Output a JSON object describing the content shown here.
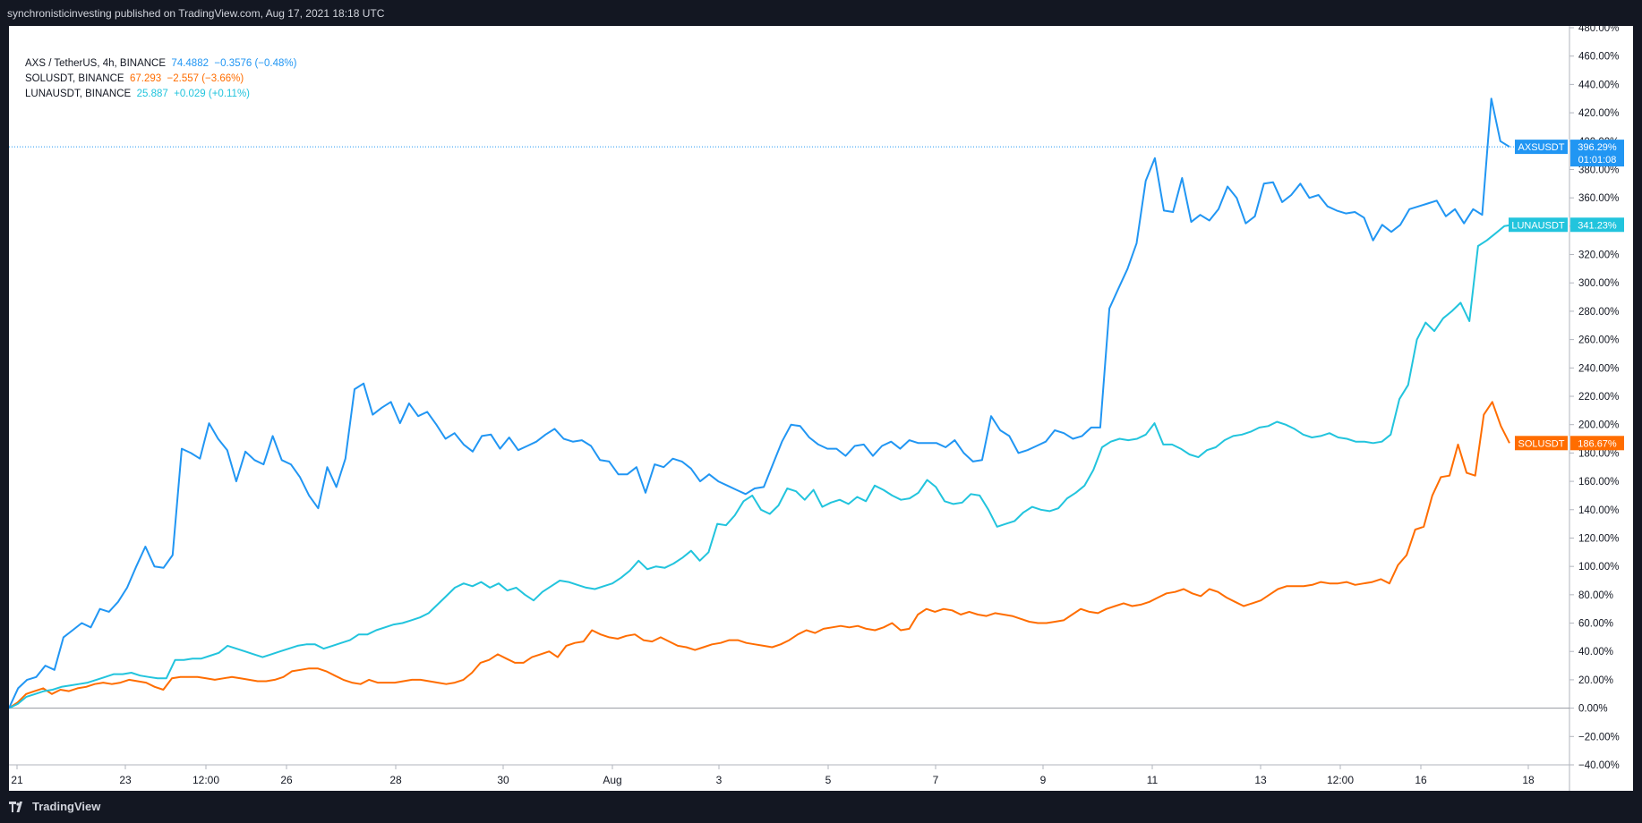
{
  "header": {
    "published": "synchronisticinvesting published on TradingView.com, Aug 17, 2021 18:18 UTC"
  },
  "legend": [
    {
      "symbol": "AXS / TetherUS, 4h, BINANCE",
      "price": "74.4882",
      "change": "−0.3576 (−0.48%)",
      "color": "#2196f3"
    },
    {
      "symbol": "SOLUSDT, BINANCE",
      "price": "67.293",
      "change": "−2.557 (−3.66%)",
      "color": "#ff6d00"
    },
    {
      "symbol": "LUNAUSDT, BINANCE",
      "price": "25.887",
      "change": "+0.029 (+0.11%)",
      "color": "#22c4dd"
    }
  ],
  "footer": {
    "brand": "TradingView"
  },
  "colors": {
    "axs": "#2196f3",
    "sol": "#ff6d00",
    "luna": "#22c4dd",
    "background": "#131722",
    "plot": "#ffffff"
  },
  "chart_data": {
    "type": "line",
    "ylim": [
      -40,
      480
    ],
    "y_ticks": [
      "480.00%",
      "460.00%",
      "440.00%",
      "420.00%",
      "400.00%",
      "380.00%",
      "360.00%",
      "340.00%",
      "320.00%",
      "300.00%",
      "280.00%",
      "260.00%",
      "240.00%",
      "220.00%",
      "200.00%",
      "180.00%",
      "160.00%",
      "140.00%",
      "120.00%",
      "100.00%",
      "80.00%",
      "60.00%",
      "40.00%",
      "20.00%",
      "0.00%",
      "−20.00%",
      "−40.00%"
    ],
    "x_ticks": [
      "21",
      "23",
      "12:00",
      "26",
      "28",
      "30",
      "Aug",
      "3",
      "5",
      "7",
      "9",
      "11",
      "13",
      "12:00",
      "16",
      "18"
    ],
    "series": [
      {
        "name": "AXSUSDT",
        "label": "396.29%",
        "countdown": "01:01:08",
        "color": "#2196f3",
        "values": [
          0,
          14,
          20,
          22,
          30,
          27,
          50,
          55,
          60,
          57,
          70,
          68,
          75,
          85,
          100,
          114,
          100,
          99,
          108,
          183,
          180,
          176,
          201,
          190,
          182,
          160,
          181,
          175,
          172,
          192,
          175,
          172,
          163,
          150,
          141,
          170,
          156,
          176,
          225,
          229,
          207,
          212,
          216,
          201,
          215,
          206,
          209,
          200,
          190,
          194,
          186,
          181,
          192,
          193,
          183,
          191,
          182,
          185,
          188,
          193,
          197,
          190,
          188,
          189,
          185,
          175,
          174,
          165,
          165,
          170,
          152,
          172,
          170,
          176,
          174,
          169,
          160,
          165,
          160,
          157,
          154,
          151,
          155,
          156,
          172,
          188,
          200,
          199,
          191,
          186,
          183,
          183,
          178,
          185,
          186,
          178,
          185,
          188,
          183,
          189,
          187,
          187,
          187,
          184,
          189,
          180,
          174,
          175,
          206,
          196,
          192,
          180,
          182,
          185,
          188,
          196,
          194,
          190,
          192,
          198,
          198,
          282,
          296,
          310,
          328,
          372,
          388,
          351,
          350,
          374,
          343,
          348,
          344,
          352,
          368,
          360,
          342,
          347,
          370,
          371,
          357,
          362,
          370,
          360,
          362,
          354,
          351,
          349,
          350,
          346,
          330,
          341,
          336,
          341,
          352,
          354,
          356,
          358,
          347,
          352,
          342,
          352,
          348,
          430,
          400,
          396
        ]
      },
      {
        "name": "LUNAUSDT",
        "label": "341.23%",
        "color": "#22c4dd",
        "values": [
          0,
          3,
          8,
          10,
          12,
          13,
          15,
          16,
          17,
          18,
          20,
          22,
          24,
          24,
          25,
          23,
          22,
          21,
          21,
          34,
          34,
          35,
          35,
          37,
          39,
          44,
          42,
          40,
          38,
          36,
          38,
          40,
          42,
          44,
          45,
          45,
          42,
          44,
          46,
          48,
          52,
          52,
          55,
          57,
          59,
          60,
          62,
          64,
          67,
          73,
          79,
          85,
          88,
          86,
          89,
          85,
          88,
          83,
          85,
          80,
          76,
          82,
          86,
          90,
          89,
          87,
          85,
          84,
          86,
          88,
          92,
          97,
          104,
          98,
          100,
          99,
          102,
          106,
          111,
          104,
          110,
          130,
          129,
          136,
          146,
          150,
          140,
          137,
          143,
          155,
          153,
          147,
          154,
          142,
          145,
          147,
          144,
          149,
          146,
          157,
          154,
          150,
          147,
          148,
          152,
          161,
          156,
          146,
          144,
          145,
          151,
          150,
          140,
          128,
          130,
          132,
          138,
          142,
          140,
          139,
          141,
          148,
          152,
          157,
          168,
          184,
          188,
          190,
          189,
          190,
          193,
          201,
          186,
          186,
          183,
          179,
          177,
          182,
          184,
          189,
          192,
          193,
          195,
          198,
          199,
          202,
          200,
          197,
          193,
          191,
          192,
          194,
          191,
          190,
          188,
          188,
          187,
          188,
          193,
          218,
          228,
          260,
          272,
          266,
          275,
          280,
          286,
          273,
          326,
          330,
          335,
          340,
          341
        ]
      },
      {
        "name": "SOLUSDT",
        "label": "186.67%",
        "color": "#ff6d00",
        "values": [
          0,
          4,
          10,
          12,
          14,
          10,
          13,
          12,
          14,
          15,
          17,
          18,
          17,
          18,
          20,
          19,
          18,
          15,
          13,
          21,
          22,
          22,
          22,
          21,
          20,
          21,
          22,
          21,
          20,
          19,
          19,
          20,
          22,
          26,
          27,
          28,
          28,
          26,
          23,
          20,
          18,
          17,
          20,
          18,
          18,
          18,
          19,
          20,
          20,
          19,
          18,
          17,
          18,
          20,
          25,
          32,
          34,
          38,
          35,
          32,
          32,
          36,
          38,
          40,
          36,
          44,
          46,
          47,
          55,
          52,
          50,
          49,
          51,
          52,
          48,
          47,
          50,
          47,
          44,
          43,
          41,
          43,
          45,
          46,
          48,
          48,
          46,
          45,
          44,
          43,
          45,
          48,
          52,
          55,
          53,
          56,
          57,
          58,
          57,
          58,
          56,
          55,
          57,
          60,
          55,
          56,
          66,
          70,
          68,
          70,
          69,
          66,
          68,
          66,
          65,
          67,
          66,
          65,
          63,
          61,
          60,
          60,
          61,
          62,
          66,
          70,
          68,
          67,
          70,
          72,
          74,
          72,
          73,
          75,
          78,
          81,
          82,
          84,
          81,
          79,
          84,
          82,
          78,
          75,
          72,
          74,
          76,
          80,
          84,
          86,
          86,
          86,
          87,
          89,
          88,
          88,
          89,
          87,
          88,
          89,
          91,
          88,
          101,
          108,
          126,
          128,
          150,
          163,
          164,
          186,
          166,
          164,
          207,
          216,
          199,
          187
        ]
      }
    ]
  }
}
